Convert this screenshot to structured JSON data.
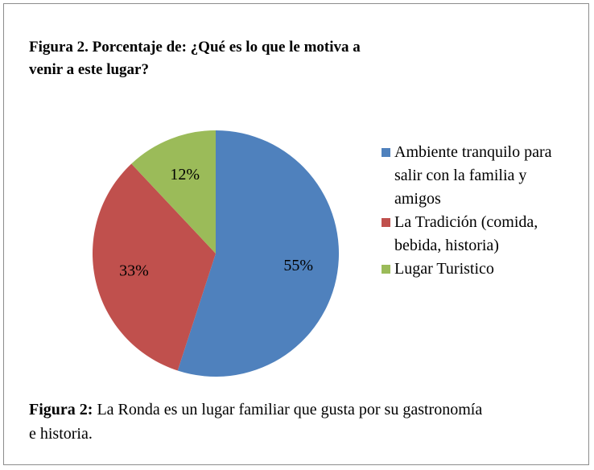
{
  "chart_data": {
    "type": "pie",
    "title": "Figura 2. Porcentaje de: ¿Qué es lo que le motiva a venir a este lugar?",
    "categories": [
      "Ambiente tranquilo para salir con la familia y amigos",
      "La Tradición (comida, bebida, historia)",
      "Lugar Turistico"
    ],
    "values": [
      55,
      33,
      12
    ],
    "value_labels": [
      "55%",
      "33%",
      "12%"
    ],
    "colors": [
      "#4f81bd",
      "#c0504d",
      "#9bbb59"
    ],
    "legend": "right",
    "caption_label": "Figura 2:",
    "caption": "La Ronda es un lugar familiar que gusta por su gastronomía e historia."
  }
}
